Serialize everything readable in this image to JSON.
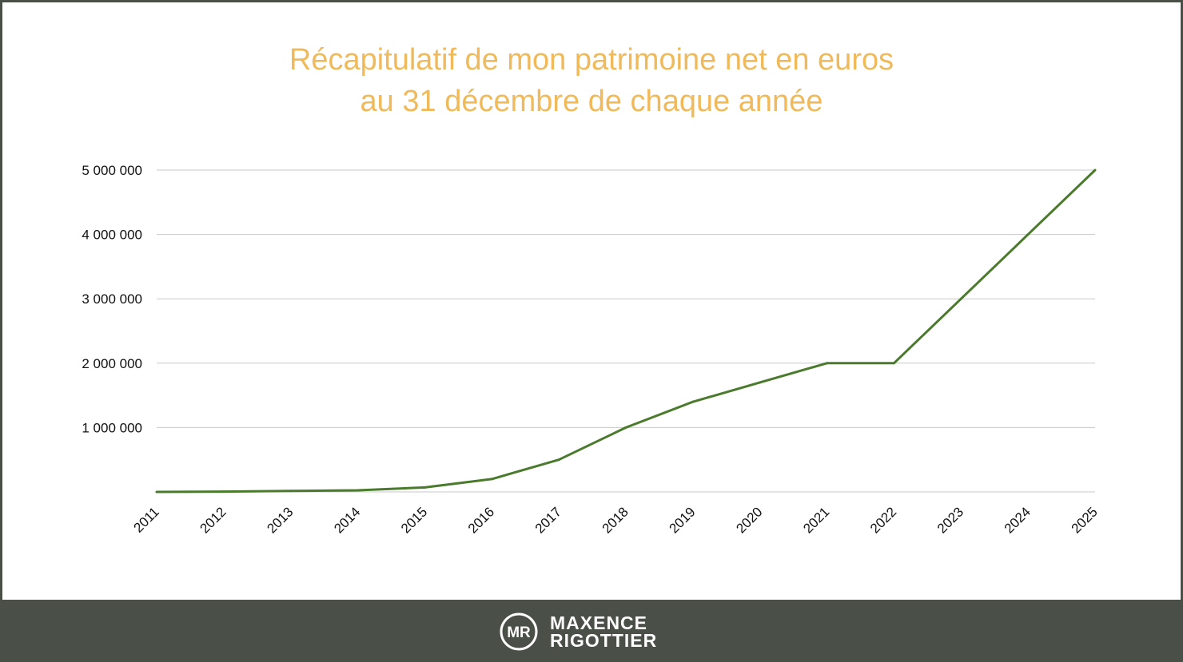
{
  "title_lines": [
    "Récapitulatif de mon patrimoine net en euros",
    "au 31 décembre de chaque année"
  ],
  "chart_data": {
    "type": "line",
    "title": "Récapitulatif de mon patrimoine net en euros au 31 décembre de chaque année",
    "xlabel": "",
    "ylabel": "",
    "categories": [
      "2011",
      "2012",
      "2013",
      "2014",
      "2015",
      "2016",
      "2017",
      "2018",
      "2019",
      "2020",
      "2021",
      "2022",
      "2023",
      "2024",
      "2025"
    ],
    "series": [
      {
        "values": [
          0,
          5000,
          15000,
          25000,
          70000,
          200000,
          500000,
          1000000,
          1400000,
          1700000,
          2000000,
          2000000,
          3000000,
          4000000,
          5000000
        ]
      }
    ],
    "yticks": [
      {
        "value": 1000000,
        "label": "1 000 000"
      },
      {
        "value": 2000000,
        "label": "2 000 000"
      },
      {
        "value": 3000000,
        "label": "3 000 000"
      },
      {
        "value": 4000000,
        "label": "4 000 000"
      },
      {
        "value": 5000000,
        "label": "5 000 000"
      }
    ],
    "ylim": [
      0,
      5000000
    ],
    "grid": true,
    "line_color": "#4a7a2c",
    "grid_color": "#c8c8c8"
  },
  "footer": {
    "brand_line1": "MAXENCE",
    "brand_line2": "RIGOTTIER",
    "logo": "MR"
  },
  "colors": {
    "title": "#f0b95a",
    "footer_bg": "#4a4f47",
    "slide_bg": "#ffffff"
  }
}
